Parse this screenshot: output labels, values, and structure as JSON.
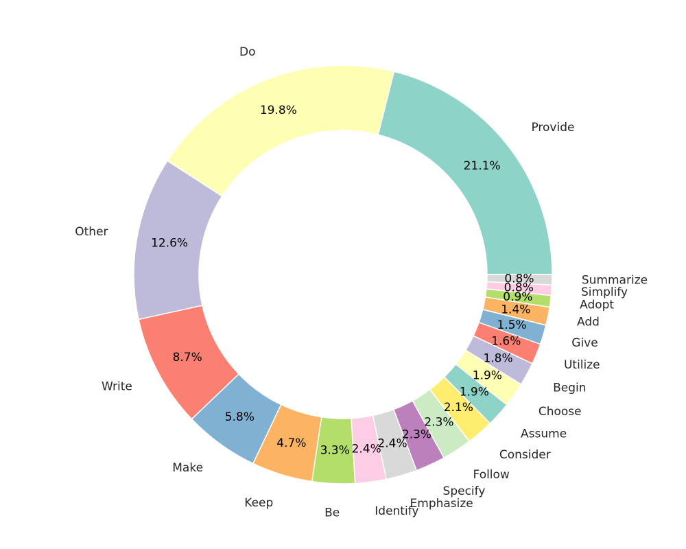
{
  "chart_data": {
    "type": "pie",
    "style": "donut",
    "title": "",
    "start": "3 o'clock, counter-clockwise",
    "slices": [
      {
        "label": "Provide",
        "value": 21.1,
        "pct_label": "21.1%",
        "color": "#8dd3c7"
      },
      {
        "label": "Do",
        "value": 19.8,
        "pct_label": "19.8%",
        "color": "#ffffb3"
      },
      {
        "label": "Other",
        "value": 12.6,
        "pct_label": "12.6%",
        "color": "#bebada"
      },
      {
        "label": "Write",
        "value": 8.7,
        "pct_label": "8.7%",
        "color": "#fb8072"
      },
      {
        "label": "Make",
        "value": 5.8,
        "pct_label": "5.8%",
        "color": "#80b1d3"
      },
      {
        "label": "Keep",
        "value": 4.7,
        "pct_label": "4.7%",
        "color": "#fdb462"
      },
      {
        "label": "Be",
        "value": 3.3,
        "pct_label": "3.3%",
        "color": "#b3de69"
      },
      {
        "label": "Identify",
        "value": 2.4,
        "pct_label": "2.4%",
        "color": "#fccde5"
      },
      {
        "label": "Emphasize",
        "value": 2.4,
        "pct_label": "2.4%",
        "color": "#d9d9d9"
      },
      {
        "label": "Specify",
        "value": 2.3,
        "pct_label": "2.3%",
        "color": "#bc80bd"
      },
      {
        "label": "Follow",
        "value": 2.3,
        "pct_label": "2.3%",
        "color": "#ccebc5"
      },
      {
        "label": "Consider",
        "value": 2.1,
        "pct_label": "2.1%",
        "color": "#ffed6f"
      },
      {
        "label": "Assume",
        "value": 1.9,
        "pct_label": "1.9%",
        "color": "#8dd3c7"
      },
      {
        "label": "Choose",
        "value": 1.9,
        "pct_label": "1.9%",
        "color": "#ffffb3"
      },
      {
        "label": "Begin",
        "value": 1.8,
        "pct_label": "1.8%",
        "color": "#bebada"
      },
      {
        "label": "Utilize",
        "value": 1.6,
        "pct_label": "1.6%",
        "color": "#fb8072"
      },
      {
        "label": "Give",
        "value": 1.5,
        "pct_label": "1.5%",
        "color": "#80b1d3"
      },
      {
        "label": "Add",
        "value": 1.4,
        "pct_label": "1.4%",
        "color": "#fdb462"
      },
      {
        "label": "Adopt",
        "value": 0.9,
        "pct_label": "0.9%",
        "color": "#b3de69"
      },
      {
        "label": "Simplify",
        "value": 0.8,
        "pct_label": "0.8%",
        "color": "#fccde5"
      },
      {
        "label": "Summarize",
        "value": 0.8,
        "pct_label": "0.8%",
        "color": "#d9d9d9"
      }
    ]
  }
}
